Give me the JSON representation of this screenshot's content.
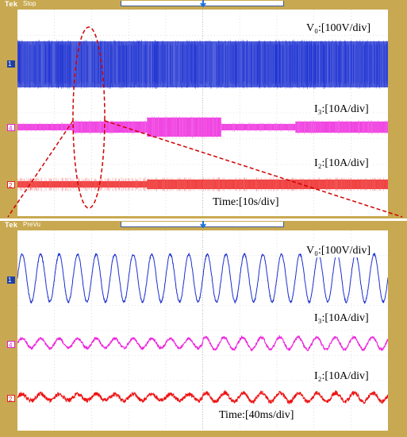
{
  "top_scope": {
    "brand": "Tek",
    "state": "Stop",
    "labels": {
      "v0": "V₀:[100V/div]",
      "i3": "I₃:[10A/div]",
      "i2": "I₂:[10A/div]",
      "time": "Time:[10s/div]"
    },
    "channels": {
      "ch1": "1",
      "ch4": "4",
      "ch2": "2"
    }
  },
  "bottom_scope": {
    "brand": "Tek",
    "state": "PreVu",
    "labels": {
      "v0": "V₀:[100V/div]",
      "i3": "I₃:[10A/div]",
      "i2": "I₂:[10A/div]",
      "time": "Time:[40ms/div]"
    },
    "channels": {
      "ch1": "1",
      "ch4": "4",
      "ch2": "2"
    }
  },
  "colors": {
    "v0": "#1a2ed0",
    "i3": "#ee22dd",
    "i2": "#ee1111",
    "frame": "#c8a951",
    "annotation": "#d00000"
  },
  "chart_data": [
    {
      "type": "line",
      "panel": "top",
      "xlabel": "Time:[10s/div]",
      "grid": true,
      "series": [
        {
          "name": "V₀:[100V/div]",
          "envelope": "constant"
        },
        {
          "name": "I₃:[10A/div]",
          "envelope_segments": [
            {
              "x": [
                0,
                1.5
              ],
              "level": "low"
            },
            {
              "x": [
                1.5,
                3.5
              ],
              "level": "medium"
            },
            {
              "x": [
                3.5,
                5.5
              ],
              "level": "high"
            },
            {
              "x": [
                5.5,
                7.5
              ],
              "level": "low"
            },
            {
              "x": [
                7.5,
                10
              ],
              "level": "medium"
            }
          ]
        },
        {
          "name": "I₂:[10A/div]",
          "envelope_segments": [
            {
              "x": [
                0,
                3.5
              ],
              "level": "low"
            },
            {
              "x": [
                3.5,
                10
              ],
              "level": "medium"
            }
          ]
        }
      ]
    },
    {
      "type": "line",
      "panel": "bottom",
      "xlabel": "Time:[40ms/div]",
      "grid": true,
      "series": [
        {
          "name": "V₀:[100V/div]",
          "cycles": 20
        },
        {
          "name": "I₃:[10A/div]",
          "cycles": 20
        },
        {
          "name": "I₂:[10A/div]",
          "cycles": 20
        }
      ]
    }
  ]
}
